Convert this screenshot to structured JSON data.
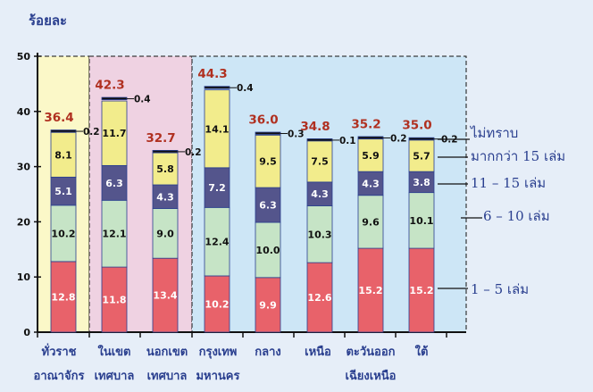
{
  "chart_data": {
    "type": "bar",
    "stacked": true,
    "ylabel": "ร้อยละ",
    "ylim": [
      0,
      50
    ],
    "yticks": [
      0,
      10,
      20,
      30,
      40,
      50
    ],
    "categories": [
      [
        "ทั่วราช",
        "อาณาจักร"
      ],
      [
        "ในเขต",
        "เทศบาล"
      ],
      [
        "นอกเขต",
        "เทศบาล"
      ],
      [
        "กรุงเทพ",
        "มหานคร"
      ],
      [
        "กลาง",
        ""
      ],
      [
        "เหนือ",
        ""
      ],
      [
        "ตะวันออก",
        "เฉียงเหนือ"
      ],
      [
        "ใต้",
        ""
      ]
    ],
    "totals": [
      "36.4",
      "42.3",
      "32.7",
      "44.3",
      "36.0",
      "34.8",
      "35.2",
      "35.0"
    ],
    "series": [
      {
        "name": "1 – 5 เล่ม",
        "color": "#e8626a",
        "labelColor": "#ffffff",
        "values": [
          12.8,
          11.8,
          13.4,
          10.2,
          9.9,
          12.6,
          15.2,
          15.2
        ],
        "labels": [
          "12.8",
          "11.8",
          "13.4",
          "10.2",
          "9.9",
          "12.6",
          "15.2",
          "15.2"
        ]
      },
      {
        "name": "6 – 10 เล่ม",
        "color": "#c6e4c6",
        "labelColor": "#111111",
        "values": [
          10.2,
          12.1,
          9.0,
          12.4,
          10.0,
          10.3,
          9.6,
          10.1
        ],
        "labels": [
          "10.2",
          "12.1",
          "9.0",
          "12.4",
          "10.0",
          "10.3",
          "9.6",
          "10.1"
        ]
      },
      {
        "name": "11 – 15 เล่ม",
        "color": "#54558c",
        "labelColor": "#ffffff",
        "values": [
          5.1,
          6.3,
          4.3,
          7.2,
          6.3,
          4.3,
          4.3,
          3.8
        ],
        "labels": [
          "5.1",
          "6.3",
          "4.3",
          "7.2",
          "6.3",
          "4.3",
          "4.3",
          "3.8"
        ]
      },
      {
        "name": "มากกว่า 15 เล่ม",
        "color": "#f2ec8c",
        "labelColor": "#111111",
        "values": [
          8.1,
          11.7,
          5.8,
          14.1,
          9.5,
          7.5,
          5.9,
          5.7
        ],
        "labels": [
          "8.1",
          "11.7",
          "5.8",
          "14.1",
          "9.5",
          "7.5",
          "5.9",
          "5.7"
        ]
      },
      {
        "name": "ไม่ทราบ",
        "color": "#111111",
        "labelColor": "#111111",
        "values": [
          0.2,
          0.4,
          0.2,
          0.4,
          0.3,
          0.1,
          0.2,
          0.2
        ],
        "labels": [
          "0.2",
          "0.4",
          "0.2",
          "0.4",
          "0.3",
          "0.1",
          "0.2",
          "0.2"
        ]
      }
    ],
    "legend": [
      "ไม่ทราบ",
      "มากกว่า 15 เล่ม",
      "11 – 15 เล่ม",
      "6 – 10 เล่ม",
      "1 – 5 เล่ม"
    ],
    "region_colors": {
      "national": "#fbf8c8",
      "urban": "#efd2e2",
      "regions": "#cde6f6"
    },
    "bar_edge_color": "#2a3f8f",
    "grid": false
  }
}
